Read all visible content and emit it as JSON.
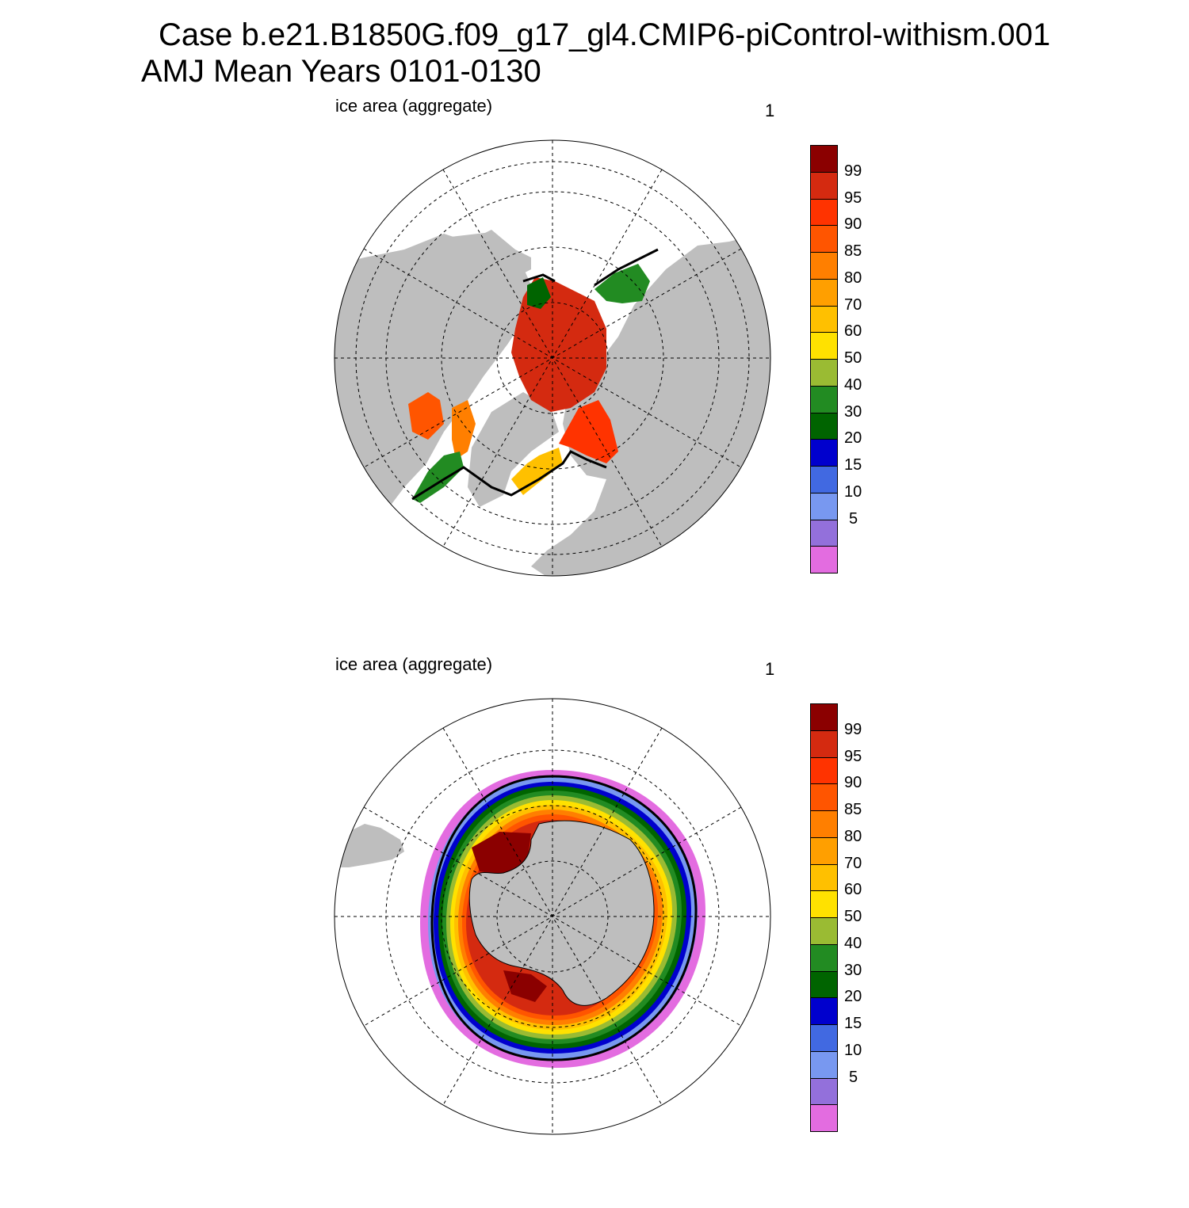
{
  "title": {
    "line1": "Case b.e21.B1850G.f09_g17_gl4.CMIP6-piControl-withism.001",
    "line2": "AMJ Mean   Years 0101-0130"
  },
  "panels": [
    {
      "id": "nh",
      "label_left": "ice area  (aggregate)",
      "label_right": "1",
      "hemisphere": "north"
    },
    {
      "id": "sh",
      "label_left": "ice area  (aggregate)",
      "label_right": "1",
      "hemisphere": "south"
    }
  ],
  "colorbar": {
    "tick_labels": [
      "99",
      "95",
      "90",
      "85",
      "80",
      "70",
      "60",
      "50",
      "40",
      "30",
      "20",
      "15",
      "10",
      "5"
    ],
    "colors_top_to_bottom": [
      "#8b0000",
      "#d42a10",
      "#ff3300",
      "#ff5500",
      "#ff7f00",
      "#ff9f00",
      "#ffc000",
      "#ffe100",
      "#9abb33",
      "#228b22",
      "#006400",
      "#0000cd",
      "#4169e1",
      "#7898f0",
      "#9370db",
      "#e36ce0"
    ]
  },
  "map_colors": {
    "land": "#bebebe",
    "ocean": "#ffffff",
    "ice_edge": "#000000"
  }
}
